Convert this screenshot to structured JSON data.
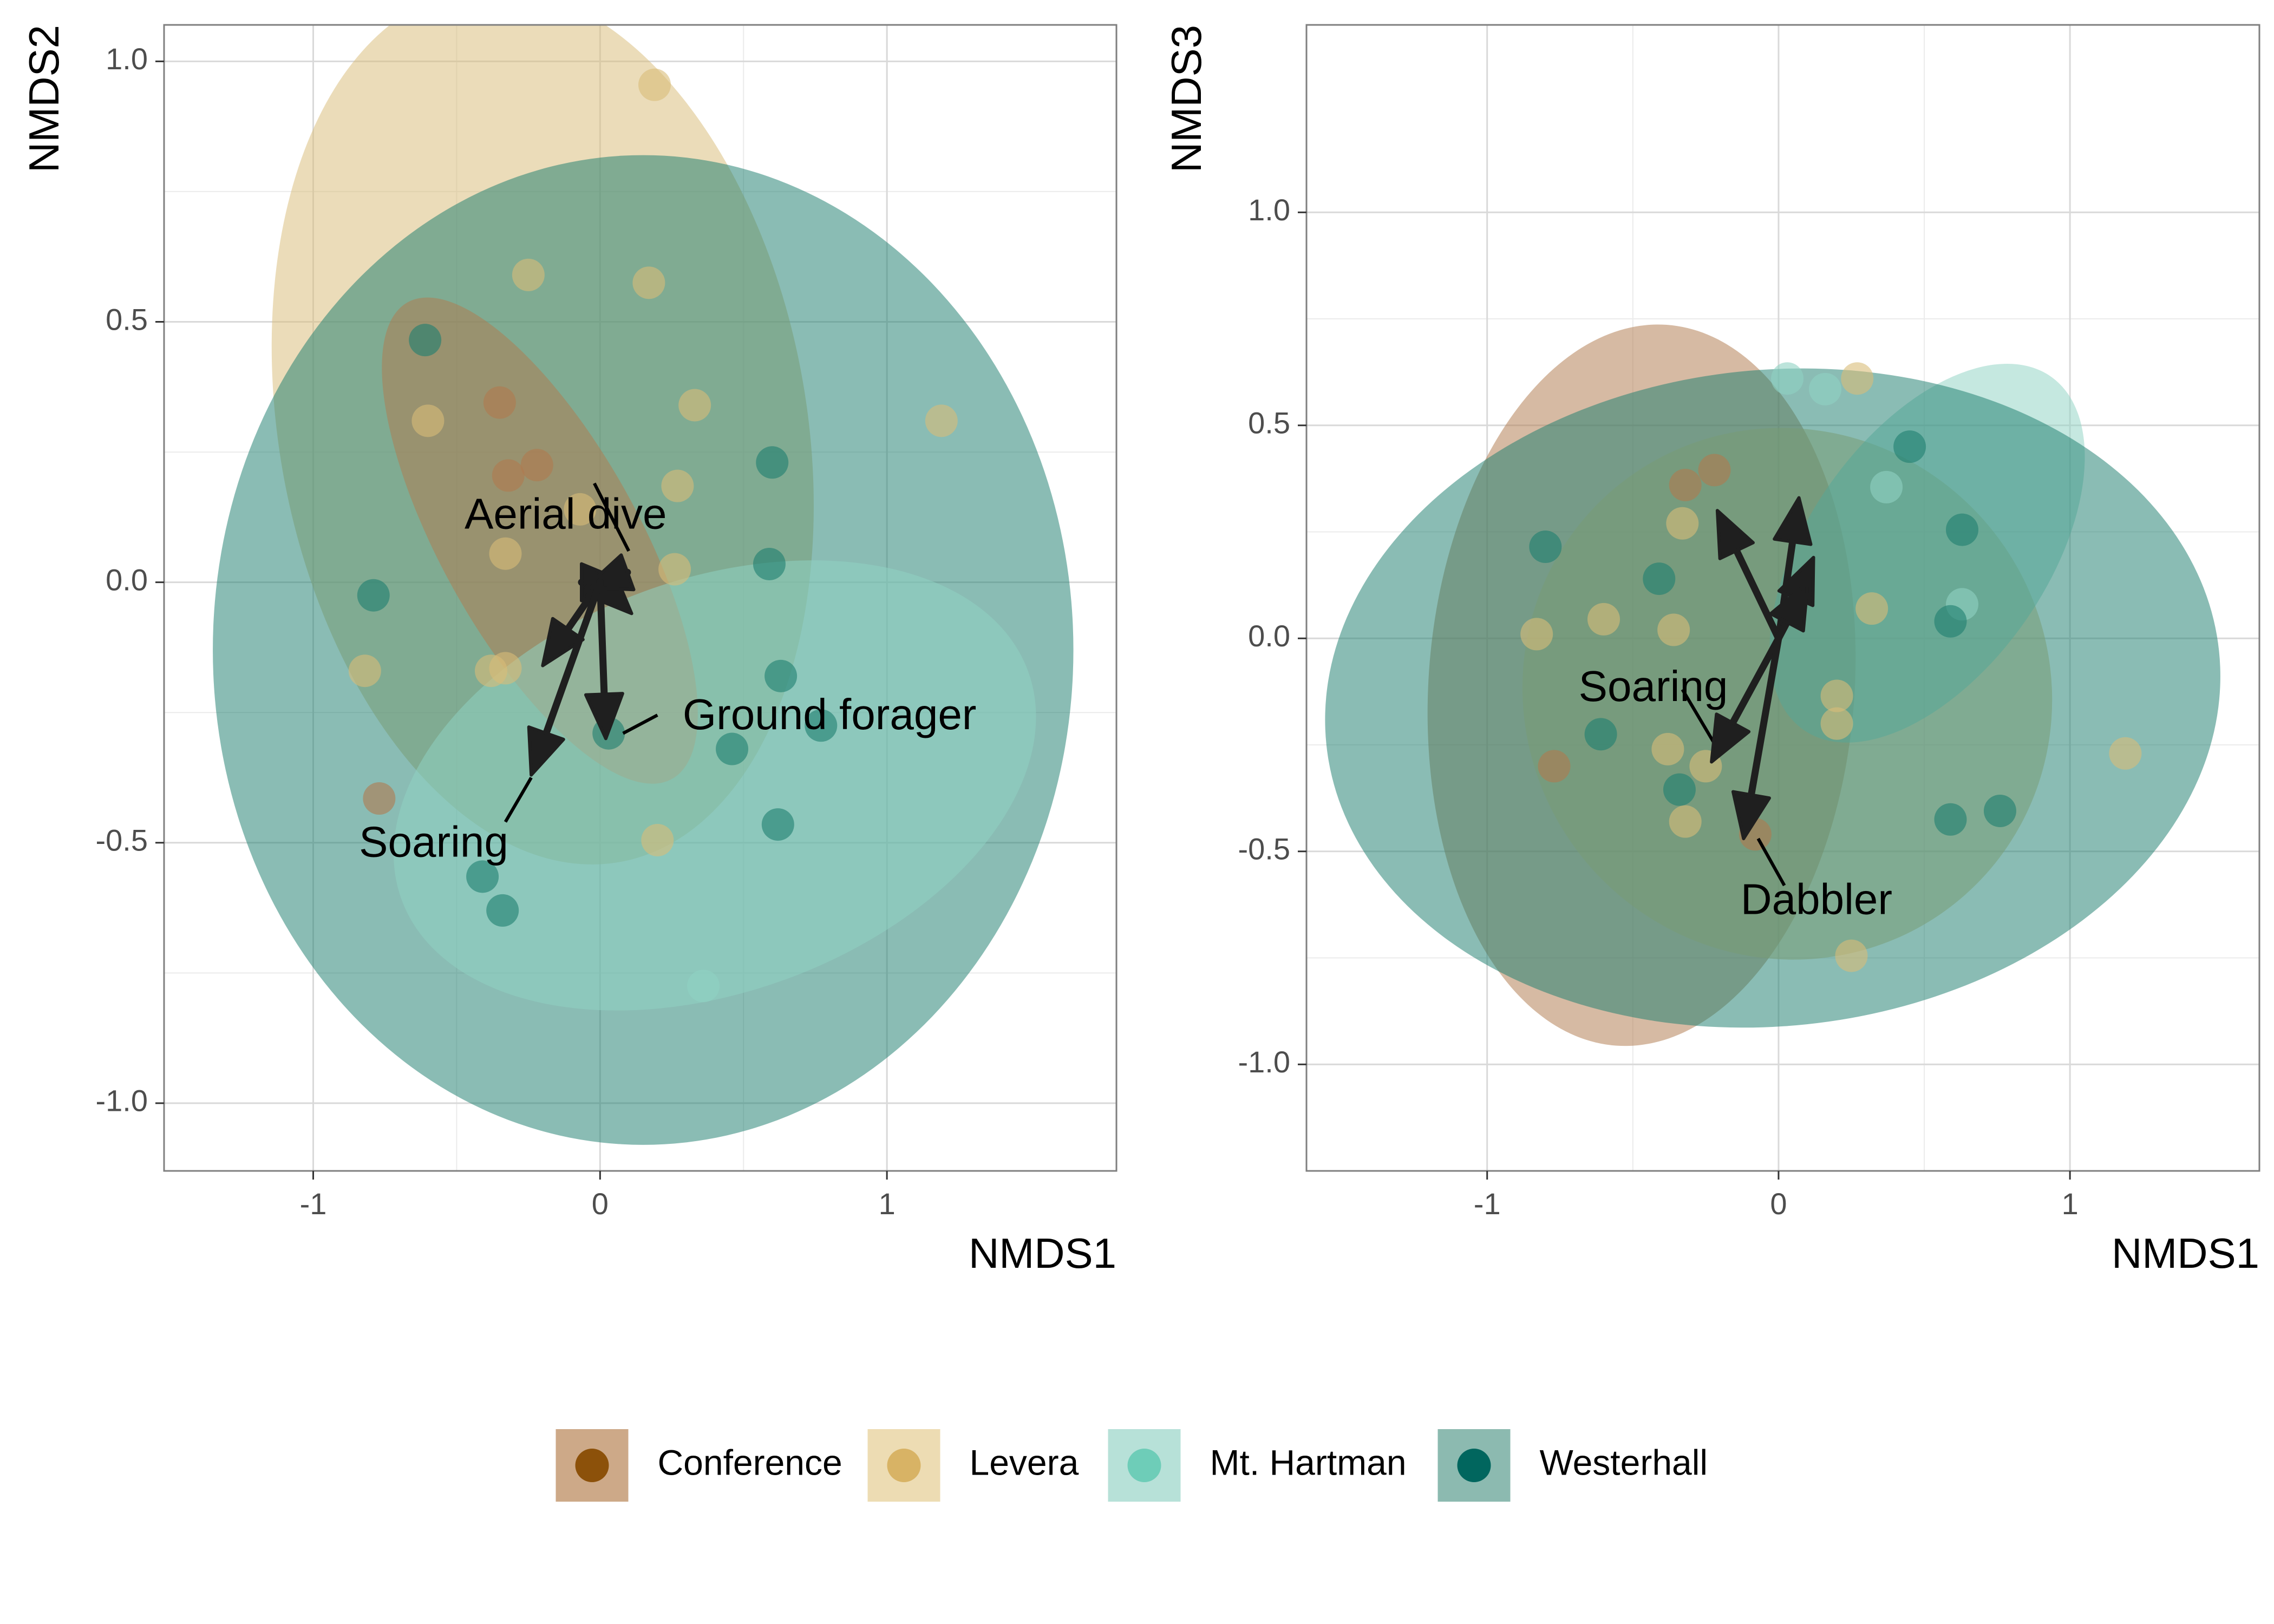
{
  "chart_data": [
    {
      "type": "scatter",
      "xlabel": "NMDS1",
      "ylabel": "NMDS2",
      "xlim": [
        -1.52,
        1.8
      ],
      "ylim": [
        -1.13,
        1.07
      ],
      "xticks": [
        {
          "v": -1,
          "label": "-1"
        },
        {
          "v": 0,
          "label": "0"
        },
        {
          "v": 1,
          "label": "1"
        }
      ],
      "yticks": [
        {
          "v": 1.0,
          "label": "1.0"
        },
        {
          "v": 0.5,
          "label": "0.5"
        },
        {
          "v": 0.0,
          "label": "0.0"
        },
        {
          "v": -0.5,
          "label": "-0.5"
        },
        {
          "v": -1.0,
          "label": "-1.0"
        }
      ],
      "grid": true,
      "ellipses": [
        {
          "group": "Levera",
          "cx": -0.2,
          "cy": 0.3,
          "rx": 0.92,
          "ry": 0.85,
          "rot": -10
        },
        {
          "group": "Westerhall",
          "cx": 0.15,
          "cy": -0.13,
          "rx": 1.5,
          "ry": 0.95,
          "rot": 0
        },
        {
          "group": "Conference",
          "cx": -0.21,
          "cy": 0.08,
          "rx": 0.95,
          "ry": 0.19,
          "rot": 61
        },
        {
          "group": "Mt. Hartman",
          "cx": 0.4,
          "cy": -0.39,
          "rx": 0.72,
          "ry": 0.64,
          "rot": 70
        }
      ],
      "points": [
        {
          "x": 0.19,
          "y": 0.955,
          "group": "Levera"
        },
        {
          "x": -0.25,
          "y": 0.59,
          "group": "Levera"
        },
        {
          "x": 0.17,
          "y": 0.575,
          "group": "Levera"
        },
        {
          "x": -0.61,
          "y": 0.465,
          "group": "Westerhall"
        },
        {
          "x": -0.35,
          "y": 0.345,
          "group": "Conference"
        },
        {
          "x": 0.33,
          "y": 0.34,
          "group": "Levera"
        },
        {
          "x": -0.6,
          "y": 0.31,
          "group": "Levera"
        },
        {
          "x": 1.19,
          "y": 0.31,
          "group": "Levera"
        },
        {
          "x": 0.6,
          "y": 0.23,
          "group": "Westerhall"
        },
        {
          "x": -0.22,
          "y": 0.225,
          "group": "Conference"
        },
        {
          "x": -0.32,
          "y": 0.205,
          "group": "Conference"
        },
        {
          "x": 0.27,
          "y": 0.185,
          "group": "Levera"
        },
        {
          "x": -0.07,
          "y": 0.14,
          "group": "Levera"
        },
        {
          "x": -0.33,
          "y": 0.055,
          "group": "Levera"
        },
        {
          "x": 0.59,
          "y": 0.035,
          "group": "Westerhall"
        },
        {
          "x": 0.26,
          "y": 0.025,
          "group": "Levera"
        },
        {
          "x": -0.79,
          "y": -0.025,
          "group": "Westerhall"
        },
        {
          "x": -0.82,
          "y": -0.17,
          "group": "Levera"
        },
        {
          "x": -0.38,
          "y": -0.17,
          "group": "Levera"
        },
        {
          "x": -0.33,
          "y": -0.165,
          "group": "Levera"
        },
        {
          "x": 0.63,
          "y": -0.18,
          "group": "Westerhall"
        },
        {
          "x": 0.03,
          "y": -0.29,
          "group": "Westerhall"
        },
        {
          "x": 0.77,
          "y": -0.275,
          "group": "Westerhall"
        },
        {
          "x": 0.46,
          "y": -0.32,
          "group": "Westerhall"
        },
        {
          "x": -0.77,
          "y": -0.415,
          "group": "Conference"
        },
        {
          "x": 0.2,
          "y": -0.495,
          "group": "Levera"
        },
        {
          "x": 0.62,
          "y": -0.465,
          "group": "Westerhall"
        },
        {
          "x": -0.41,
          "y": -0.565,
          "group": "Westerhall"
        },
        {
          "x": -0.34,
          "y": -0.63,
          "group": "Westerhall"
        },
        {
          "x": 0.36,
          "y": -0.775,
          "group": "Mt. Hartman"
        }
      ],
      "vectors": [
        {
          "x": 0.09,
          "y": 0.0,
          "text": ""
        },
        {
          "x": 0.11,
          "y": -0.06,
          "text": ""
        },
        {
          "x": -0.05,
          "y": -0.01,
          "text": ""
        },
        {
          "x": -0.2,
          "y": -0.16,
          "text": ""
        },
        {
          "x": 0.02,
          "y": -0.3,
          "text": "Ground forager"
        },
        {
          "x": -0.24,
          "y": -0.37,
          "text": "Soaring"
        }
      ],
      "annotations": [
        {
          "text": "Aerial dive",
          "x": -0.12,
          "y": 0.125,
          "lx1": 0.1,
          "ly1": 0.06,
          "lx2": -0.02,
          "ly2": 0.19
        },
        {
          "text": "Ground forager",
          "x": 0.8,
          "y": -0.26,
          "lx1": 0.08,
          "ly1": -0.29,
          "lx2": 0.2,
          "ly2": -0.255
        },
        {
          "text": "Soaring",
          "x": -0.58,
          "y": -0.505,
          "lx1": -0.24,
          "ly1": -0.375,
          "lx2": -0.33,
          "ly2": -0.46
        }
      ]
    },
    {
      "type": "scatter",
      "xlabel": "NMDS1",
      "ylabel": "NMDS3",
      "xlim": [
        -1.62,
        1.65
      ],
      "ylim": [
        -1.25,
        1.44
      ],
      "xticks": [
        {
          "v": -1,
          "label": "-1"
        },
        {
          "v": 0,
          "label": "0"
        },
        {
          "v": 1,
          "label": "1"
        }
      ],
      "yticks": [
        {
          "v": 1.0,
          "label": "1.0"
        },
        {
          "v": 0.5,
          "label": "0.5"
        },
        {
          "v": 0.0,
          "label": "0.0"
        },
        {
          "v": -0.5,
          "label": "-0.5"
        },
        {
          "v": -1.0,
          "label": "-1.0"
        }
      ],
      "grid": true,
      "ellipses": [
        {
          "group": "Conference",
          "cx": -0.47,
          "cy": -0.11,
          "rx": 1.24,
          "ry": 0.5,
          "rot": -86
        },
        {
          "group": "Levera",
          "cx": 0.03,
          "cy": -0.13,
          "rx": 0.9,
          "ry": 0.63,
          "rot": -40
        },
        {
          "group": "Mt. Hartman",
          "cx": 0.51,
          "cy": 0.2,
          "rx": 0.74,
          "ry": 0.28,
          "rot": -55
        },
        {
          "group": "Westerhall",
          "cx": -0.02,
          "cy": -0.14,
          "rx": 1.54,
          "ry": 0.77,
          "rot": -6
        }
      ],
      "points": [
        {
          "x": 0.03,
          "y": 0.61,
          "group": "Mt. Hartman"
        },
        {
          "x": 0.16,
          "y": 0.585,
          "group": "Mt. Hartman"
        },
        {
          "x": 0.27,
          "y": 0.61,
          "group": "Levera"
        },
        {
          "x": 0.45,
          "y": 0.45,
          "group": "Westerhall"
        },
        {
          "x": -0.22,
          "y": 0.395,
          "group": "Conference"
        },
        {
          "x": -0.32,
          "y": 0.36,
          "group": "Conference"
        },
        {
          "x": 0.37,
          "y": 0.355,
          "group": "Mt. Hartman"
        },
        {
          "x": -0.33,
          "y": 0.27,
          "group": "Levera"
        },
        {
          "x": 0.63,
          "y": 0.255,
          "group": "Westerhall"
        },
        {
          "x": -0.8,
          "y": 0.215,
          "group": "Westerhall"
        },
        {
          "x": -0.41,
          "y": 0.14,
          "group": "Westerhall"
        },
        {
          "x": 0.63,
          "y": 0.08,
          "group": "Mt. Hartman"
        },
        {
          "x": 0.32,
          "y": 0.07,
          "group": "Levera"
        },
        {
          "x": -0.6,
          "y": 0.045,
          "group": "Levera"
        },
        {
          "x": 0.59,
          "y": 0.04,
          "group": "Westerhall"
        },
        {
          "x": -0.83,
          "y": 0.01,
          "group": "Levera"
        },
        {
          "x": -0.36,
          "y": 0.02,
          "group": "Levera"
        },
        {
          "x": 0.2,
          "y": -0.135,
          "group": "Levera"
        },
        {
          "x": 0.2,
          "y": -0.2,
          "group": "Levera"
        },
        {
          "x": -0.61,
          "y": -0.225,
          "group": "Westerhall"
        },
        {
          "x": -0.38,
          "y": -0.26,
          "group": "Levera"
        },
        {
          "x": 1.19,
          "y": -0.27,
          "group": "Levera"
        },
        {
          "x": -0.25,
          "y": -0.3,
          "group": "Levera"
        },
        {
          "x": -0.77,
          "y": -0.3,
          "group": "Conference"
        },
        {
          "x": -0.34,
          "y": -0.355,
          "group": "Westerhall"
        },
        {
          "x": 0.76,
          "y": -0.405,
          "group": "Westerhall"
        },
        {
          "x": 0.59,
          "y": -0.425,
          "group": "Westerhall"
        },
        {
          "x": -0.32,
          "y": -0.43,
          "group": "Levera"
        },
        {
          "x": -0.08,
          "y": -0.46,
          "group": "Conference"
        },
        {
          "x": 0.25,
          "y": -0.745,
          "group": "Levera"
        }
      ],
      "vectors": [
        {
          "x": -0.21,
          "y": 0.3,
          "text": ""
        },
        {
          "x": 0.07,
          "y": 0.33,
          "text": ""
        },
        {
          "x": 0.12,
          "y": 0.19,
          "text": ""
        },
        {
          "x": 0.1,
          "y": 0.13,
          "text": ""
        },
        {
          "x": -0.23,
          "y": -0.29,
          "text": "Soaring"
        },
        {
          "x": -0.12,
          "y": -0.47,
          "text": "Dabbler"
        }
      ],
      "annotations": [
        {
          "text": "Soaring",
          "x": -0.43,
          "y": -0.12,
          "lx1": -0.2,
          "ly1": -0.27,
          "lx2": -0.33,
          "ly2": -0.12
        },
        {
          "text": "Dabbler",
          "x": 0.13,
          "y": -0.62,
          "lx1": -0.07,
          "ly1": -0.47,
          "lx2": 0.02,
          "ly2": -0.58
        }
      ]
    }
  ],
  "legend": {
    "items": [
      {
        "label": "Conference",
        "fill": "#CDA988",
        "dot": "#8C510A"
      },
      {
        "label": "Levera",
        "fill": "#EDDCB3",
        "dot": "#D8B365"
      },
      {
        "label": "Mt. Hartman",
        "fill": "#B7E1D8",
        "dot": "#6ECDB8"
      },
      {
        "label": "Westerhall",
        "fill": "#8CBAB0",
        "dot": "#01665E"
      }
    ]
  },
  "colors": {
    "Conference": "#B07A4E",
    "Levera": "#D9BC78",
    "Mt. Hartman": "#8FD2C3",
    "Westerhall": "#1E7F70",
    "arrow": "#1f1f1f",
    "panel_border": "#7f7f7f",
    "grid": "#d9d9d9"
  }
}
